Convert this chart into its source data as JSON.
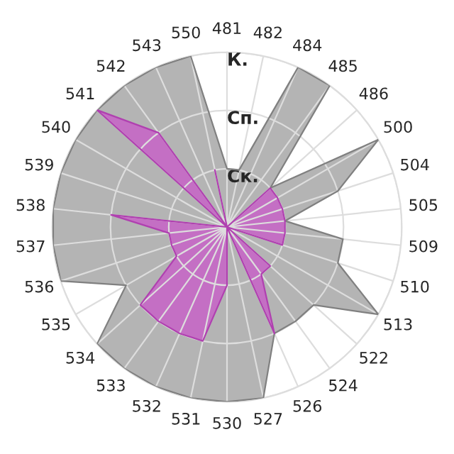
{
  "chart_data": {
    "type": "radar",
    "categories": [
      "481",
      "482",
      "484",
      "485",
      "486",
      "500",
      "504",
      "505",
      "509",
      "510",
      "513",
      "522",
      "524",
      "526",
      "527",
      "530",
      "531",
      "532",
      "533",
      "534",
      "535",
      "536",
      "537",
      "538",
      "539",
      "540",
      "541",
      "542",
      "543",
      "550"
    ],
    "series": [
      {
        "color": "#b4b4b4",
        "values": [
          1,
          1,
          3,
          3,
          1,
          3,
          2,
          1,
          2,
          2,
          3,
          2,
          2,
          2,
          3,
          3,
          3,
          3,
          3,
          3,
          2,
          3,
          3,
          3,
          3,
          3,
          3,
          3,
          3,
          3
        ]
      },
      {
        "color": "#c46fc4",
        "values": [
          0,
          0,
          0,
          0,
          1,
          1,
          1,
          1,
          1,
          1,
          0,
          1,
          1,
          2,
          0,
          1,
          2,
          2,
          2,
          2,
          1,
          1,
          1,
          2,
          0,
          0,
          3,
          2,
          0,
          1
        ]
      }
    ],
    "ylim": [
      0,
      3
    ],
    "yticks": [
      {
        "value": 1,
        "label": "Ск."
      },
      {
        "value": 2,
        "label": "Сп."
      },
      {
        "value": 3,
        "label": "К."
      }
    ],
    "grid": true
  }
}
